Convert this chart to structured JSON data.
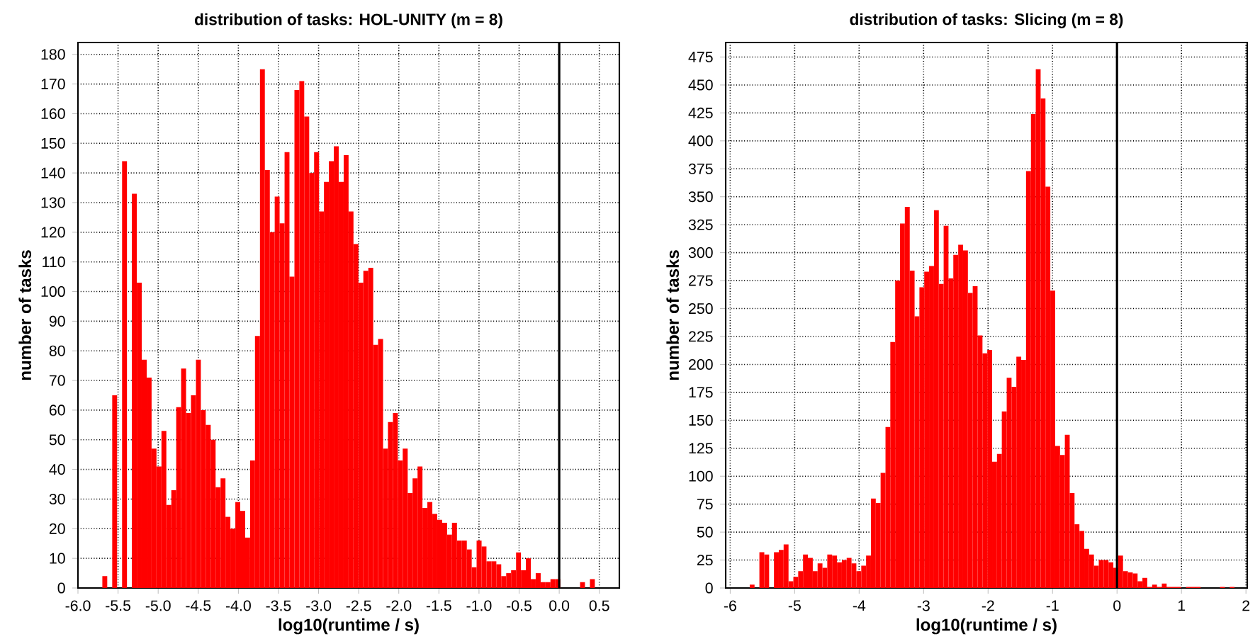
{
  "chart_data": [
    {
      "type": "histogram",
      "title": "distribution of tasks: HOL-UNITY (m = 8)",
      "xlabel": "log10(runtime / s)",
      "ylabel": "number of tasks",
      "color": "#ff0000",
      "grid": true,
      "xlim": [
        -6.0,
        0.75
      ],
      "ylim": [
        0,
        184
      ],
      "xticks": [
        {
          "value": -6,
          "label": "-6.0"
        },
        -5.5,
        {
          "value": -5,
          "label": "-5.0"
        },
        -4.5,
        {
          "value": -4,
          "label": "-4.0"
        },
        -3.5,
        {
          "value": -3,
          "label": "-3.0"
        },
        -2.5,
        {
          "value": -2,
          "label": "-2.0"
        },
        -1.5,
        {
          "value": -1,
          "label": "-1.0"
        },
        -0.5,
        {
          "value": 0,
          "label": "0.0"
        },
        0.5
      ],
      "yticks": [
        0,
        10,
        20,
        30,
        40,
        50,
        60,
        70,
        80,
        90,
        100,
        110,
        120,
        130,
        140,
        150,
        160,
        170,
        180
      ],
      "ref_lines": [
        {
          "axis": "x",
          "value": 0,
          "color": "#000000",
          "line_style": "solid"
        }
      ],
      "bins": [
        -5.696,
        -5.635,
        -5.573,
        -5.512,
        -5.45,
        -5.389,
        -5.328,
        -5.266,
        -5.205,
        -5.143,
        -5.082,
        -5.021,
        -4.959,
        -4.898,
        -4.836,
        -4.775,
        -4.714,
        -4.652,
        -4.591,
        -4.529,
        -4.468,
        -4.407,
        -4.345,
        -4.284,
        -4.222,
        -4.161,
        -4.1,
        -4.038,
        -3.977,
        -3.915,
        -3.854,
        -3.793,
        -3.731,
        -3.67,
        -3.608,
        -3.547,
        -3.486,
        -3.424,
        -3.363,
        -3.301,
        -3.24,
        -3.179,
        -3.117,
        -3.056,
        -2.994,
        -2.933,
        -2.872,
        -2.81,
        -2.749,
        -2.687,
        -2.626,
        -2.565,
        -2.503,
        -2.442,
        -2.38,
        -2.319,
        -2.258,
        -2.196,
        -2.135,
        -2.073,
        -2.012,
        -1.951,
        -1.889,
        -1.828,
        -1.766,
        -1.705,
        -1.644,
        -1.582,
        -1.521,
        -1.459,
        -1.398,
        -1.337,
        -1.275,
        -1.214,
        -1.152,
        -1.091,
        -1.03,
        -0.968,
        -0.907,
        -0.845,
        -0.784,
        -0.723,
        -0.661,
        -0.6,
        -0.538,
        -0.477,
        -0.416,
        -0.354,
        -0.293,
        -0.231,
        -0.17,
        -0.109,
        -0.047,
        0.014,
        0.076,
        0.137,
        0.198,
        0.26,
        0.321,
        0.383,
        0.444
      ],
      "values": [
        4,
        0,
        65,
        0,
        144,
        0,
        133,
        103,
        77,
        71,
        47,
        41,
        53,
        28,
        33,
        61,
        74,
        59,
        65,
        77,
        60,
        55,
        50,
        34,
        37,
        24,
        20,
        29,
        26,
        17,
        43,
        85,
        175,
        141,
        120,
        132,
        123,
        147,
        105,
        168,
        171,
        159,
        140,
        147,
        127,
        137,
        144,
        149,
        137,
        146,
        127,
        116,
        103,
        107,
        108,
        82,
        84,
        47,
        56,
        59,
        43,
        47,
        32,
        37,
        41,
        27,
        29,
        25,
        23,
        22,
        18,
        22,
        16,
        16,
        13,
        7,
        16,
        14,
        9,
        9,
        8,
        4,
        5,
        6,
        12,
        6,
        10,
        3,
        5,
        2,
        2,
        3,
        3,
        0,
        0,
        0,
        0,
        2,
        0,
        3
      ]
    },
    {
      "type": "histogram",
      "title": "distribution of tasks: Slicing (m = 8)",
      "xlabel": "log10(runtime / s)",
      "ylabel": "number of tasks",
      "color": "#ff0000",
      "grid": true,
      "xlim": [
        -6.07,
        2.02
      ],
      "ylim": [
        0,
        488
      ],
      "xticks": [
        -6,
        -5,
        -4,
        -3,
        -2,
        -1,
        0,
        1,
        2
      ],
      "yticks": [
        0,
        25,
        50,
        75,
        100,
        125,
        150,
        175,
        200,
        225,
        250,
        275,
        300,
        325,
        350,
        375,
        400,
        425,
        450,
        475
      ],
      "ref_lines": [
        {
          "axis": "x",
          "value": 0,
          "color": "#000000",
          "line_style": "solid"
        }
      ],
      "bins": [
        -5.697,
        -5.622,
        -5.547,
        -5.471,
        -5.396,
        -5.321,
        -5.246,
        -5.171,
        -5.095,
        -5.02,
        -4.945,
        -4.87,
        -4.795,
        -4.719,
        -4.644,
        -4.569,
        -4.494,
        -4.419,
        -4.343,
        -4.268,
        -4.193,
        -4.118,
        -4.043,
        -3.967,
        -3.892,
        -3.817,
        -3.742,
        -3.667,
        -3.591,
        -3.516,
        -3.441,
        -3.366,
        -3.291,
        -3.215,
        -3.14,
        -3.065,
        -2.99,
        -2.915,
        -2.839,
        -2.764,
        -2.689,
        -2.614,
        -2.539,
        -2.463,
        -2.388,
        -2.313,
        -2.238,
        -2.163,
        -2.087,
        -2.012,
        -1.937,
        -1.862,
        -1.787,
        -1.711,
        -1.636,
        -1.561,
        -1.486,
        -1.411,
        -1.335,
        -1.26,
        -1.185,
        -1.11,
        -1.035,
        -0.959,
        -0.884,
        -0.809,
        -0.734,
        -0.659,
        -0.583,
        -0.508,
        -0.433,
        -0.358,
        -0.283,
        -0.207,
        -0.132,
        -0.057,
        0.018,
        0.093,
        0.169,
        0.244,
        0.319,
        0.394,
        0.469,
        0.545,
        0.62,
        0.695,
        0.77,
        0.845,
        0.921,
        0.996,
        1.071,
        1.146,
        1.221,
        1.297,
        1.372,
        1.447,
        1.522,
        1.597,
        1.673,
        1.748,
        1.823
      ],
      "values": [
        3,
        0,
        32,
        30,
        0,
        32,
        34,
        39,
        6,
        10,
        15,
        30,
        27,
        15,
        22,
        18,
        30,
        29,
        23,
        25,
        27,
        22,
        15,
        20,
        29,
        80,
        76,
        103,
        144,
        220,
        275,
        326,
        341,
        284,
        243,
        269,
        283,
        288,
        338,
        272,
        324,
        277,
        298,
        307,
        302,
        264,
        270,
        226,
        210,
        213,
        113,
        120,
        158,
        188,
        180,
        207,
        204,
        373,
        424,
        464,
        438,
        359,
        266,
        127,
        119,
        137,
        85,
        57,
        51,
        35,
        30,
        20,
        25,
        25,
        23,
        18,
        29,
        15,
        14,
        13,
        6,
        9,
        1,
        3,
        1,
        4,
        1,
        1,
        1,
        0,
        1,
        1,
        1,
        0,
        0,
        0,
        0,
        1,
        0,
        1
      ]
    }
  ]
}
